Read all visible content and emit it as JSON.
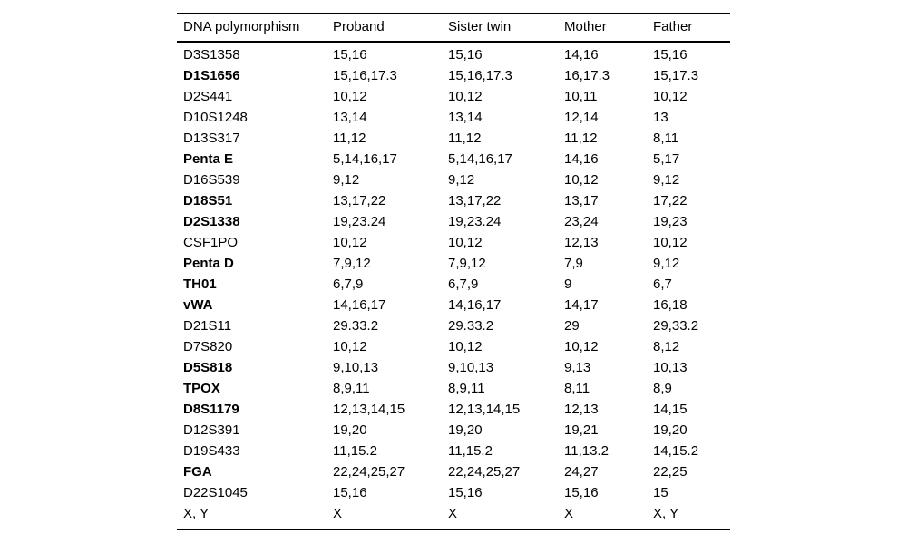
{
  "table": {
    "columns": [
      "DNA polymorphism",
      "Proband",
      "Sister twin",
      "Mother",
      "Father"
    ],
    "rows": [
      {
        "marker": "D3S1358",
        "bold": false,
        "values": [
          "15,16",
          "15,16",
          "14,16",
          "15,16"
        ]
      },
      {
        "marker": "D1S1656",
        "bold": true,
        "values": [
          "15,16,17.3",
          "15,16,17.3",
          "16,17.3",
          "15,17.3"
        ]
      },
      {
        "marker": "D2S441",
        "bold": false,
        "values": [
          "10,12",
          "10,12",
          "10,11",
          "10,12"
        ]
      },
      {
        "marker": "D10S1248",
        "bold": false,
        "values": [
          "13,14",
          "13,14",
          "12,14",
          "13"
        ]
      },
      {
        "marker": "D13S317",
        "bold": false,
        "values": [
          "11,12",
          "11,12",
          "11,12",
          "8,11"
        ]
      },
      {
        "marker": "Penta E",
        "bold": true,
        "values": [
          "5,14,16,17",
          "5,14,16,17",
          "14,16",
          "5,17"
        ]
      },
      {
        "marker": "D16S539",
        "bold": false,
        "values": [
          "9,12",
          "9,12",
          "10,12",
          "9,12"
        ]
      },
      {
        "marker": "D18S51",
        "bold": true,
        "values": [
          "13,17,22",
          "13,17,22",
          "13,17",
          "17,22"
        ]
      },
      {
        "marker": "D2S1338",
        "bold": true,
        "values": [
          "19,23.24",
          "19,23.24",
          "23,24",
          "19,23"
        ]
      },
      {
        "marker": "CSF1PO",
        "bold": false,
        "values": [
          "10,12",
          "10,12",
          "12,13",
          "10,12"
        ]
      },
      {
        "marker": "Penta D",
        "bold": true,
        "values": [
          "7,9,12",
          "7,9,12",
          "7,9",
          "9,12"
        ]
      },
      {
        "marker": "TH01",
        "bold": true,
        "values": [
          "6,7,9",
          "6,7,9",
          "9",
          "6,7"
        ]
      },
      {
        "marker": "vWA",
        "bold": true,
        "values": [
          "14,16,17",
          "14,16,17",
          "14,17",
          "16,18"
        ]
      },
      {
        "marker": "D21S11",
        "bold": false,
        "values": [
          "29.33.2",
          "29.33.2",
          "29",
          "29,33.2"
        ]
      },
      {
        "marker": "D7S820",
        "bold": false,
        "values": [
          "10,12",
          "10,12",
          "10,12",
          "8,12"
        ]
      },
      {
        "marker": "D5S818",
        "bold": true,
        "values": [
          "9,10,13",
          "9,10,13",
          "9,13",
          "10,13"
        ]
      },
      {
        "marker": "TPOX",
        "bold": true,
        "values": [
          "8,9,11",
          "8,9,11",
          "8,11",
          "8,9"
        ]
      },
      {
        "marker": "D8S1179",
        "bold": true,
        "values": [
          "12,13,14,15",
          "12,13,14,15",
          "12,13",
          "14,15"
        ]
      },
      {
        "marker": "D12S391",
        "bold": false,
        "values": [
          "19,20",
          "19,20",
          "19,21",
          "19,20"
        ]
      },
      {
        "marker": "D19S433",
        "bold": false,
        "values": [
          "11,15.2",
          "11,15.2",
          "11,13.2",
          "14,15.2"
        ]
      },
      {
        "marker": "FGA",
        "bold": true,
        "values": [
          "22,24,25,27",
          "22,24,25,27",
          "24,27",
          "22,25"
        ]
      },
      {
        "marker": "D22S1045",
        "bold": false,
        "values": [
          "15,16",
          "15,16",
          "15,16",
          "15"
        ]
      },
      {
        "marker": "X, Y",
        "bold": false,
        "values": [
          "X",
          "X",
          "X",
          "X, Y"
        ]
      }
    ]
  }
}
